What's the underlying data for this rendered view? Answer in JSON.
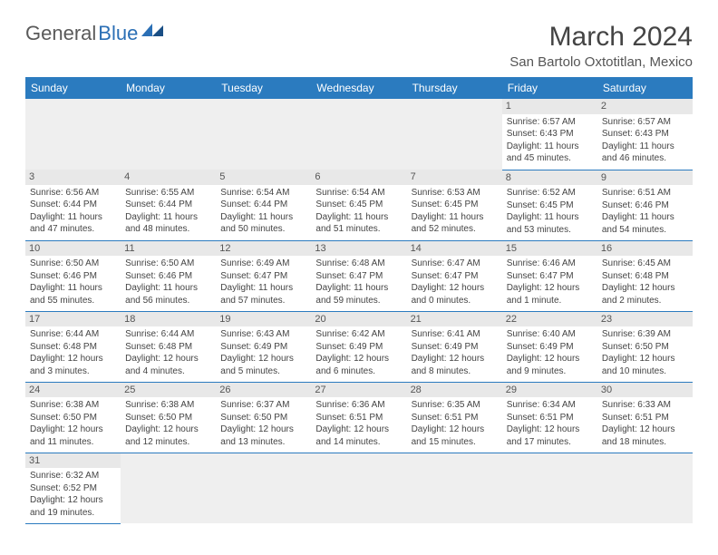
{
  "brand": {
    "part1": "General",
    "part2": "Blue"
  },
  "title": "March 2024",
  "location": "San Bartolo Oxtotitlan, Mexico",
  "colors": {
    "header_bg": "#2b7bbf",
    "header_text": "#ffffff",
    "daynum_bg": "#e8e8e8",
    "border": "#2b7bbf",
    "logo_gray": "#5a5a5a",
    "logo_blue": "#2b6fb5"
  },
  "weekdays": [
    "Sunday",
    "Monday",
    "Tuesday",
    "Wednesday",
    "Thursday",
    "Friday",
    "Saturday"
  ],
  "weeks": [
    [
      null,
      null,
      null,
      null,
      null,
      {
        "n": "1",
        "sr": "Sunrise: 6:57 AM",
        "ss": "Sunset: 6:43 PM",
        "dl": "Daylight: 11 hours and 45 minutes."
      },
      {
        "n": "2",
        "sr": "Sunrise: 6:57 AM",
        "ss": "Sunset: 6:43 PM",
        "dl": "Daylight: 11 hours and 46 minutes."
      }
    ],
    [
      {
        "n": "3",
        "sr": "Sunrise: 6:56 AM",
        "ss": "Sunset: 6:44 PM",
        "dl": "Daylight: 11 hours and 47 minutes."
      },
      {
        "n": "4",
        "sr": "Sunrise: 6:55 AM",
        "ss": "Sunset: 6:44 PM",
        "dl": "Daylight: 11 hours and 48 minutes."
      },
      {
        "n": "5",
        "sr": "Sunrise: 6:54 AM",
        "ss": "Sunset: 6:44 PM",
        "dl": "Daylight: 11 hours and 50 minutes."
      },
      {
        "n": "6",
        "sr": "Sunrise: 6:54 AM",
        "ss": "Sunset: 6:45 PM",
        "dl": "Daylight: 11 hours and 51 minutes."
      },
      {
        "n": "7",
        "sr": "Sunrise: 6:53 AM",
        "ss": "Sunset: 6:45 PM",
        "dl": "Daylight: 11 hours and 52 minutes."
      },
      {
        "n": "8",
        "sr": "Sunrise: 6:52 AM",
        "ss": "Sunset: 6:45 PM",
        "dl": "Daylight: 11 hours and 53 minutes."
      },
      {
        "n": "9",
        "sr": "Sunrise: 6:51 AM",
        "ss": "Sunset: 6:46 PM",
        "dl": "Daylight: 11 hours and 54 minutes."
      }
    ],
    [
      {
        "n": "10",
        "sr": "Sunrise: 6:50 AM",
        "ss": "Sunset: 6:46 PM",
        "dl": "Daylight: 11 hours and 55 minutes."
      },
      {
        "n": "11",
        "sr": "Sunrise: 6:50 AM",
        "ss": "Sunset: 6:46 PM",
        "dl": "Daylight: 11 hours and 56 minutes."
      },
      {
        "n": "12",
        "sr": "Sunrise: 6:49 AM",
        "ss": "Sunset: 6:47 PM",
        "dl": "Daylight: 11 hours and 57 minutes."
      },
      {
        "n": "13",
        "sr": "Sunrise: 6:48 AM",
        "ss": "Sunset: 6:47 PM",
        "dl": "Daylight: 11 hours and 59 minutes."
      },
      {
        "n": "14",
        "sr": "Sunrise: 6:47 AM",
        "ss": "Sunset: 6:47 PM",
        "dl": "Daylight: 12 hours and 0 minutes."
      },
      {
        "n": "15",
        "sr": "Sunrise: 6:46 AM",
        "ss": "Sunset: 6:47 PM",
        "dl": "Daylight: 12 hours and 1 minute."
      },
      {
        "n": "16",
        "sr": "Sunrise: 6:45 AM",
        "ss": "Sunset: 6:48 PM",
        "dl": "Daylight: 12 hours and 2 minutes."
      }
    ],
    [
      {
        "n": "17",
        "sr": "Sunrise: 6:44 AM",
        "ss": "Sunset: 6:48 PM",
        "dl": "Daylight: 12 hours and 3 minutes."
      },
      {
        "n": "18",
        "sr": "Sunrise: 6:44 AM",
        "ss": "Sunset: 6:48 PM",
        "dl": "Daylight: 12 hours and 4 minutes."
      },
      {
        "n": "19",
        "sr": "Sunrise: 6:43 AM",
        "ss": "Sunset: 6:49 PM",
        "dl": "Daylight: 12 hours and 5 minutes."
      },
      {
        "n": "20",
        "sr": "Sunrise: 6:42 AM",
        "ss": "Sunset: 6:49 PM",
        "dl": "Daylight: 12 hours and 6 minutes."
      },
      {
        "n": "21",
        "sr": "Sunrise: 6:41 AM",
        "ss": "Sunset: 6:49 PM",
        "dl": "Daylight: 12 hours and 8 minutes."
      },
      {
        "n": "22",
        "sr": "Sunrise: 6:40 AM",
        "ss": "Sunset: 6:49 PM",
        "dl": "Daylight: 12 hours and 9 minutes."
      },
      {
        "n": "23",
        "sr": "Sunrise: 6:39 AM",
        "ss": "Sunset: 6:50 PM",
        "dl": "Daylight: 12 hours and 10 minutes."
      }
    ],
    [
      {
        "n": "24",
        "sr": "Sunrise: 6:38 AM",
        "ss": "Sunset: 6:50 PM",
        "dl": "Daylight: 12 hours and 11 minutes."
      },
      {
        "n": "25",
        "sr": "Sunrise: 6:38 AM",
        "ss": "Sunset: 6:50 PM",
        "dl": "Daylight: 12 hours and 12 minutes."
      },
      {
        "n": "26",
        "sr": "Sunrise: 6:37 AM",
        "ss": "Sunset: 6:50 PM",
        "dl": "Daylight: 12 hours and 13 minutes."
      },
      {
        "n": "27",
        "sr": "Sunrise: 6:36 AM",
        "ss": "Sunset: 6:51 PM",
        "dl": "Daylight: 12 hours and 14 minutes."
      },
      {
        "n": "28",
        "sr": "Sunrise: 6:35 AM",
        "ss": "Sunset: 6:51 PM",
        "dl": "Daylight: 12 hours and 15 minutes."
      },
      {
        "n": "29",
        "sr": "Sunrise: 6:34 AM",
        "ss": "Sunset: 6:51 PM",
        "dl": "Daylight: 12 hours and 17 minutes."
      },
      {
        "n": "30",
        "sr": "Sunrise: 6:33 AM",
        "ss": "Sunset: 6:51 PM",
        "dl": "Daylight: 12 hours and 18 minutes."
      }
    ],
    [
      {
        "n": "31",
        "sr": "Sunrise: 6:32 AM",
        "ss": "Sunset: 6:52 PM",
        "dl": "Daylight: 12 hours and 19 minutes."
      },
      null,
      null,
      null,
      null,
      null,
      null
    ]
  ]
}
